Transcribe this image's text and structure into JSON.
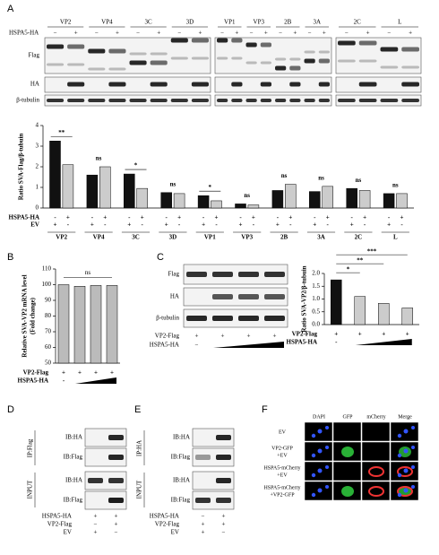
{
  "panels": {
    "a": "A",
    "b": "B",
    "c": "C",
    "d": "D",
    "e": "E",
    "f": "F"
  },
  "panel_a_blot": {
    "proteins": [
      "VP2",
      "VP4",
      "3C",
      "3D",
      "VP1",
      "VP3",
      "2B",
      "3A",
      "2C",
      "L"
    ],
    "treatment_label": "HSPA5-HA",
    "lane_signs": [
      "−",
      "+"
    ],
    "rows": [
      "Flag",
      "HA",
      "β-tubulin"
    ]
  },
  "chart_data": [
    {
      "type": "bar",
      "y_label": [
        "Ratio SVA-Flag/β-tubuin"
      ],
      "categories": [
        "VP2",
        "VP4",
        "3C",
        "3D",
        "VP1",
        "VP3",
        "2B",
        "3A",
        "2C",
        "L"
      ],
      "series": [
        {
          "color": "#111111",
          "values": [
            3.25,
            1.6,
            1.65,
            0.75,
            0.6,
            0.2,
            0.85,
            0.8,
            0.95,
            0.7
          ]
        },
        {
          "color": "#cccccc",
          "values": [
            2.1,
            2.0,
            0.95,
            0.7,
            0.35,
            0.15,
            1.15,
            1.05,
            0.85,
            0.7
          ]
        }
      ],
      "annotations": [
        "**",
        "ns",
        "*",
        "ns",
        "*",
        "ns",
        "ns",
        "ns",
        "ns",
        "ns"
      ],
      "conditions": [
        {
          "label": "HSPA5-HA",
          "signs": [
            "-",
            "+"
          ]
        },
        {
          "label": "EV",
          "signs": [
            "+",
            "-"
          ]
        }
      ],
      "ylim": [
        0,
        4
      ],
      "yticks": [
        0,
        1,
        2,
        3,
        4
      ]
    },
    {
      "type": "bar",
      "y_label": [
        "Relative SVA-VP2 mRNA level",
        "(Fold change)"
      ],
      "values": [
        100,
        99,
        99.5,
        99.5
      ],
      "color": "#bbbbbb",
      "annotations": [
        "ns"
      ],
      "conditions": [
        {
          "label": "VP2-Flag",
          "signs": [
            "+",
            "+",
            "+",
            "+"
          ]
        },
        {
          "label": "HSPA5-HA",
          "signs": [
            "-"
          ]
        }
      ],
      "ylim": [
        50,
        110
      ],
      "yticks": [
        50,
        60,
        70,
        80,
        90,
        100,
        110
      ]
    },
    {
      "type": "bar",
      "y_label": [
        "Ratio SVA-VP2/β-tubuin"
      ],
      "values": [
        1.75,
        1.1,
        0.83,
        0.65
      ],
      "colors": [
        "#111111",
        "#cccccc",
        "#cccccc",
        "#cccccc"
      ],
      "annotations": [
        "*",
        "**",
        "***"
      ],
      "conditions": [
        {
          "label": "VP2-Flag",
          "signs": [
            "+",
            "+",
            "+",
            "+"
          ]
        },
        {
          "label": "HSPA5-HA",
          "signs": [
            "-"
          ]
        }
      ],
      "ylim": [
        0,
        2
      ],
      "yticks": [
        {
          "value": 0,
          "label": "0.0"
        },
        {
          "value": 0.5,
          "label": "0.5"
        },
        {
          "value": 1,
          "label": "1.0"
        },
        {
          "value": 1.5,
          "label": "1.5"
        },
        {
          "value": 2,
          "label": "2.0"
        }
      ]
    }
  ],
  "panel_c_blot": {
    "rows": [
      "Flag",
      "HA",
      "β-tubulin"
    ],
    "conditions": [
      {
        "label": "VP2-Flag",
        "signs": [
          "+",
          "+",
          "+",
          "+"
        ]
      },
      {
        "label": "HSPA5-HA",
        "signs": [
          "−"
        ]
      }
    ]
  },
  "panel_d": {
    "ip_label": "IP:Flag",
    "input_label": "INPUT",
    "ib_labels": [
      "IB:HA",
      "IB:Flag",
      "IB:HA",
      "IB:Flag"
    ],
    "conditions": [
      {
        "label": "HSPA5-HA",
        "signs": [
          "+",
          "+"
        ]
      },
      {
        "label": "VP2-Flag",
        "signs": [
          "−",
          "+"
        ]
      },
      {
        "label": "EV",
        "signs": [
          "+",
          "−"
        ]
      }
    ]
  },
  "panel_e": {
    "ip_label": "IP:HA",
    "input_label": "INPUT",
    "ib_labels": [
      "IB:HA",
      "IB:Flag",
      "IB:HA",
      "IB:Flag"
    ],
    "conditions": [
      {
        "label": "HSPA5-HA",
        "signs": [
          "−",
          "+"
        ]
      },
      {
        "label": "VP2-Flag",
        "signs": [
          "+",
          "+"
        ]
      },
      {
        "label": "EV",
        "signs": [
          "+",
          "−"
        ]
      }
    ]
  },
  "panel_f": {
    "columns": [
      "DAPI",
      "GFP",
      "mCherry",
      "Merge"
    ],
    "rows": [
      [
        "EV"
      ],
      [
        "VP2-GFP",
        "+EV"
      ],
      [
        "HSPA5-mCherry",
        "+EV"
      ],
      [
        "HSPA5-mCherry",
        "+VP2-GFP"
      ]
    ]
  }
}
